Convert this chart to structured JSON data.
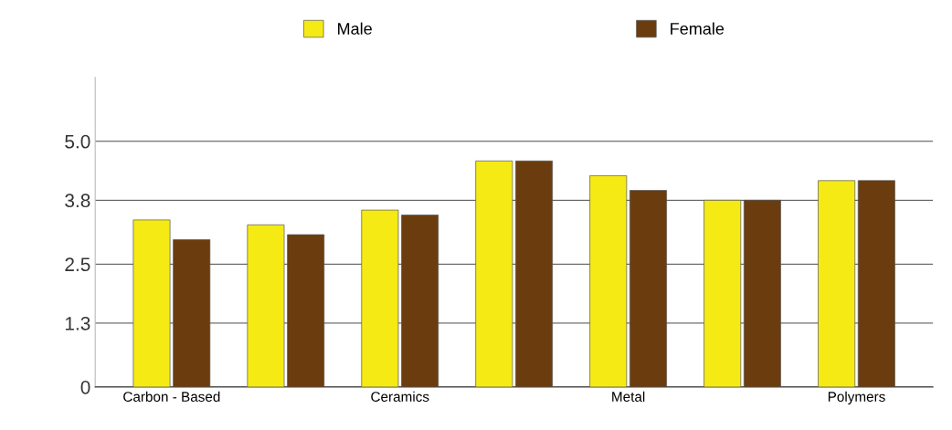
{
  "chart_data": {
    "type": "bar",
    "categories": [
      "Carbon - Based",
      null,
      "Ceramics",
      null,
      "Metal",
      null,
      "Polymers"
    ],
    "series": [
      {
        "name": "Male",
        "color": "#f5ea14",
        "values": [
          3.4,
          3.3,
          3.6,
          4.6,
          4.3,
          3.8,
          4.2
        ]
      },
      {
        "name": "Female",
        "color": "#6b3d0e",
        "values": [
          3.0,
          3.1,
          3.5,
          4.6,
          4.0,
          3.8,
          4.2
        ]
      }
    ],
    "ylim": [
      0,
      6.3
    ],
    "yticks": [
      0,
      1.3,
      2.5,
      3.8,
      {
        "value": 5,
        "label": "5.0"
      }
    ],
    "grid": "y",
    "legend": "top"
  }
}
